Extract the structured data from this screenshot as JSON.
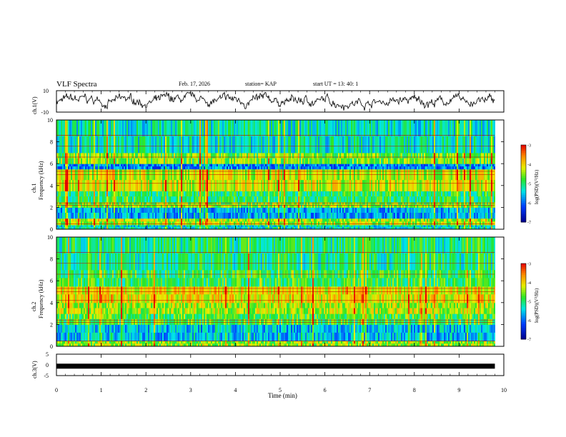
{
  "header": {
    "title": "VLF Spectra",
    "date": "Feb. 17, 2026",
    "station": "station= KAP",
    "start": "start  UT  =   13: 40: 1"
  },
  "chart_data": [
    {
      "type": "line",
      "name": "ch1-waveform",
      "ylabel": "ch.1(V)",
      "ylim": [
        -10,
        10
      ],
      "yticks": [
        "10",
        "-10"
      ],
      "xlim": [
        0,
        9.8
      ],
      "series": [
        {
          "name": "ch.1",
          "description_only": false
        }
      ]
    },
    {
      "type": "heatmap",
      "name": "ch1-spectrogram",
      "ylabel": "ch.1\nFrequency  (kHz)",
      "ylabel_line1": "ch.1",
      "ylabel_line2": "Frequency  (kHz)",
      "ylim": [
        0,
        10
      ],
      "yticks": [
        "0",
        "2",
        "4",
        "6",
        "8",
        "10"
      ],
      "xlim": [
        0,
        9.8
      ],
      "colorbar": {
        "range": [
          -7,
          -3
        ],
        "ticks": [
          "-3",
          "-4",
          "-5",
          "-6",
          "-7"
        ],
        "label": "log(PSD)(V²/Hz)"
      },
      "bands": [
        {
          "f0": 0.0,
          "f1": 0.4,
          "level": -5.4
        },
        {
          "f0": 0.4,
          "f1": 1.0,
          "level": -4.4
        },
        {
          "f0": 1.0,
          "f1": 2.0,
          "level": -5.7
        },
        {
          "f0": 2.0,
          "f1": 2.5,
          "level": -4.6
        },
        {
          "f0": 2.5,
          "f1": 3.5,
          "level": -5.0
        },
        {
          "f0": 3.5,
          "f1": 5.5,
          "level": -4.3
        },
        {
          "f0": 5.5,
          "f1": 6.0,
          "level": -5.9
        },
        {
          "f0": 6.0,
          "f1": 7.0,
          "level": -4.6
        },
        {
          "f0": 7.0,
          "f1": 10.0,
          "level": -5.3
        }
      ]
    },
    {
      "type": "heatmap",
      "name": "ch2-spectrogram",
      "ylabel_line1": "ch.2",
      "ylabel_line2": "Frequency  (kHz)",
      "ylim": [
        0,
        10
      ],
      "yticks": [
        "0",
        "2",
        "4",
        "6",
        "8",
        "10"
      ],
      "xlim": [
        0,
        9.8
      ],
      "colorbar": {
        "range": [
          -7,
          -3
        ],
        "ticks": [
          "-3",
          "-4",
          "-5",
          "-6",
          "-7"
        ],
        "label": "log(PSD)(V²/Hz)"
      },
      "bands": [
        {
          "f0": 0.0,
          "f1": 0.5,
          "level": -4.5
        },
        {
          "f0": 0.5,
          "f1": 2.0,
          "level": -5.6
        },
        {
          "f0": 2.0,
          "f1": 3.0,
          "level": -4.8
        },
        {
          "f0": 3.0,
          "f1": 4.0,
          "level": -4.4
        },
        {
          "f0": 4.0,
          "f1": 5.5,
          "level": -4.1
        },
        {
          "f0": 5.5,
          "f1": 7.0,
          "level": -4.9
        },
        {
          "f0": 7.0,
          "f1": 10.0,
          "level": -5.1
        }
      ]
    },
    {
      "type": "line",
      "name": "ch3-signal",
      "ylabel": "ch.3(V)",
      "ylim": [
        -5,
        5
      ],
      "yticks": [
        "5",
        "0",
        "-5"
      ],
      "xlim": [
        0,
        9.8
      ],
      "series": [
        {
          "name": "ch.3",
          "x": [
            0,
            9.8
          ],
          "values": [
            -0.6,
            -0.6
          ]
        }
      ]
    }
  ],
  "xaxis": {
    "label": "Time  (min)",
    "ticks": [
      "0",
      "1",
      "2",
      "3",
      "4",
      "5",
      "6",
      "7",
      "8",
      "9",
      "10"
    ],
    "range": [
      0,
      10
    ]
  }
}
